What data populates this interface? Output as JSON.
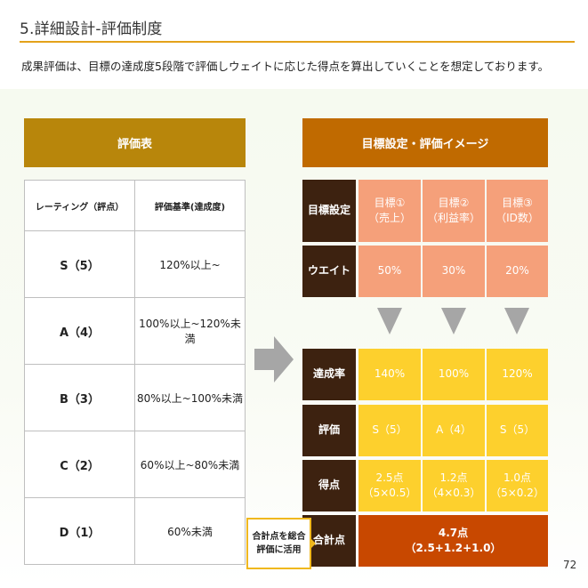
{
  "header": {
    "title": "5.詳細設計-評価制度",
    "description": "成果評価は、目標の達成度5段階で評価しウェイトに応じた得点を算出していくことを想定しております。"
  },
  "left": {
    "heading": "評価表",
    "columns": [
      "レーティング（評点）",
      "評価基準(達成度)"
    ],
    "rows": [
      {
        "rating": "S（5）",
        "criteria": "120%以上~"
      },
      {
        "rating": "A（4）",
        "criteria": "100%以上~120%未満"
      },
      {
        "rating": "B（3）",
        "criteria": "80%以上~100%未満"
      },
      {
        "rating": "C（2）",
        "criteria": "60%以上~80%未満"
      },
      {
        "rating": "D（1）",
        "criteria": "60%未満"
      }
    ]
  },
  "right": {
    "heading": "目標設定・評価イメージ",
    "labels": {
      "goal": "目標設定",
      "weight": "ウエイト",
      "achievement": "達成率",
      "evaluation": "評価",
      "score": "得点",
      "total": "合計点"
    },
    "goals": [
      {
        "line1": "目標①",
        "line2": "（売上）"
      },
      {
        "line1": "目標②",
        "line2": "（利益率）"
      },
      {
        "line1": "目標③",
        "line2": "（ID数）"
      }
    ],
    "weights": [
      "50%",
      "30%",
      "20%"
    ],
    "achievements": [
      "140%",
      "100%",
      "120%"
    ],
    "evaluations": [
      "S（5）",
      "A（4）",
      "S（5）"
    ],
    "scores": [
      {
        "line1": "2.5点",
        "line2": "（5×0.5）"
      },
      {
        "line1": "1.2点",
        "line2": "（4×0.3）"
      },
      {
        "line1": "1.0点",
        "line2": "（5×0.2）"
      }
    ],
    "total": {
      "line1": "4.7点",
      "line2": "（2.5+1.2+1.0）"
    }
  },
  "callout": {
    "line1": "合計点を総合",
    "line2": "評価に活用"
  },
  "page_number": "72",
  "colors": {
    "accent_line": "#e3a21a",
    "left_header": "#b8860b",
    "right_header": "#c06a00",
    "label_dark": "#3d2210",
    "salmon": "#f5a07a",
    "yellow": "#fdd02d",
    "total_orange": "#c84800",
    "arrow_gray": "#a6a6a6"
  }
}
